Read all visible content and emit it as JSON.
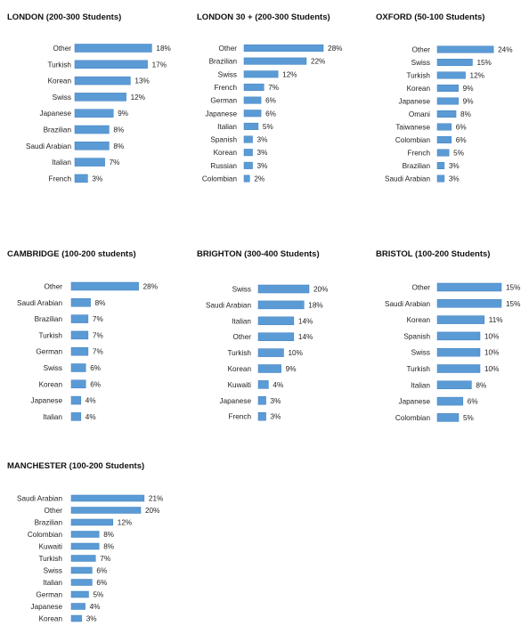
{
  "colors": {
    "bar": "#5b9bd5",
    "bar_border": "#3f7fbf"
  },
  "chart_data": [
    {
      "type": "bar",
      "orientation": "horizontal",
      "title": "LONDON (200-300 Students)",
      "categories": [
        "Other",
        "Turkish",
        "Korean",
        "Swiss",
        "Japanese",
        "Brazilian",
        "Saudi Arabian",
        "Italian",
        "French"
      ],
      "values": [
        18,
        17,
        13,
        12,
        9,
        8,
        8,
        7,
        3
      ],
      "value_labels": [
        "18%",
        "17%",
        "13%",
        "12%",
        "9%",
        "8%",
        "8%",
        "7%",
        "3%"
      ]
    },
    {
      "type": "bar",
      "orientation": "horizontal",
      "title": "LONDON 30 + (200-300 Students)",
      "categories": [
        "Other",
        "Brazilian",
        "Swiss",
        "French",
        "German",
        "Japanese",
        "Italian",
        "Spanish",
        "Korean",
        "Russian",
        "Colombian"
      ],
      "values": [
        28,
        22,
        12,
        7,
        6,
        6,
        5,
        3,
        3,
        3,
        2
      ],
      "value_labels": [
        "28%",
        "22%",
        "12%",
        "7%",
        "6%",
        "6%",
        "5%",
        "3%",
        "3%",
        "3%",
        "2%"
      ]
    },
    {
      "type": "bar",
      "orientation": "horizontal",
      "title": "OXFORD (50-100 Students)",
      "categories": [
        "Other",
        "Swiss",
        "Turkish",
        "Korean",
        "Japanese",
        "Omani",
        "Taiwanese",
        "Colombian",
        "French",
        "Brazilian",
        "Saudi Arabian"
      ],
      "values": [
        24,
        15,
        12,
        9,
        9,
        8,
        6,
        6,
        5,
        3,
        3
      ],
      "value_labels": [
        "24%",
        "15%",
        "12%",
        "9%",
        "9%",
        "8%",
        "6%",
        "6%",
        "5%",
        "3%",
        "3%"
      ]
    },
    {
      "type": "bar",
      "orientation": "horizontal",
      "title": "CAMBRIDGE (100-200 students)",
      "categories": [
        "Other",
        "Saudi Arabian",
        "Brazilian",
        "Turkish",
        "German",
        "Swiss",
        "Korean",
        "Japanese",
        "Italian"
      ],
      "values": [
        28,
        8,
        7,
        7,
        7,
        6,
        6,
        4,
        4
      ],
      "value_labels": [
        "28%",
        "8%",
        "7%",
        "7%",
        "7%",
        "6%",
        "6%",
        "4%",
        "4%"
      ]
    },
    {
      "type": "bar",
      "orientation": "horizontal",
      "title": "BRIGHTON (300-400 Students)",
      "categories": [
        "Swiss",
        "Saudi Arabian",
        "Italian",
        "Other",
        "Turkish",
        "Korean",
        "Kuwaiti",
        "Japanese",
        "French"
      ],
      "values": [
        20,
        18,
        14,
        14,
        10,
        9,
        4,
        3,
        3
      ],
      "value_labels": [
        "20%",
        "18%",
        "14%",
        "14%",
        "10%",
        "9%",
        "4%",
        "3%",
        "3%"
      ]
    },
    {
      "type": "bar",
      "orientation": "horizontal",
      "title": "BRISTOL  (100-200 Students)",
      "categories": [
        "Other",
        "Saudi Arabian",
        "Korean",
        "Spanish",
        "Swiss",
        "Turkish",
        "Italian",
        "Japanese",
        "Colombian"
      ],
      "values": [
        15,
        15,
        11,
        10,
        10,
        10,
        8,
        6,
        5
      ],
      "value_labels": [
        "15%",
        "15%",
        "11%",
        "10%",
        "10%",
        "10%",
        "8%",
        "6%",
        "5%"
      ]
    },
    {
      "type": "bar",
      "orientation": "horizontal",
      "title": "MANCHESTER (100-200 Students)",
      "categories": [
        "Saudi Arabian",
        "Other",
        "Brazilian",
        "Colombian",
        "Kuwaiti",
        "Turkish",
        "Swiss",
        "Italian",
        "German",
        "Japanese",
        "Korean"
      ],
      "values": [
        21,
        20,
        12,
        8,
        8,
        7,
        6,
        6,
        5,
        4,
        3
      ],
      "value_labels": [
        "21%",
        "20%",
        "12%",
        "8%",
        "8%",
        "7%",
        "6%",
        "6%",
        "5%",
        "4%",
        "3%"
      ]
    }
  ]
}
